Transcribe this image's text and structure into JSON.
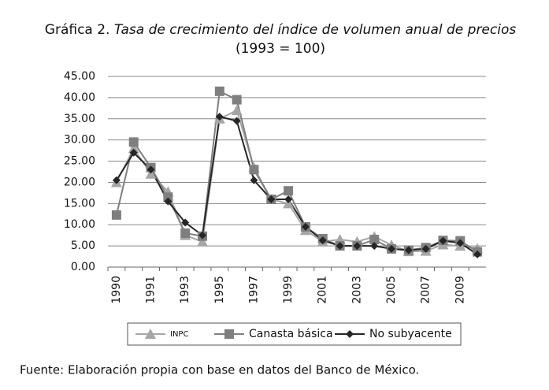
{
  "chart_data": {
    "type": "line",
    "figure_label": "Gráfica 2.",
    "title": "Tasa de crecimiento del índice de volumen anual de precios",
    "subtitle": "(1993 = 100)",
    "source": "Fuente: Elaboración propia con base en datos del Banco de México.",
    "categories": [
      "1990",
      null,
      "1991",
      null,
      "1993",
      null,
      "1995",
      null,
      "1997",
      null,
      "1999",
      null,
      "2001",
      null,
      "2003",
      null,
      "2005",
      null,
      "2007",
      null,
      "2009",
      null
    ],
    "series": [
      {
        "name": "INPC",
        "color": "#a6a6a6",
        "marker": "triangle",
        "values": [
          20.0,
          28.0,
          22.0,
          17.8,
          7.5,
          6.0,
          35.0,
          37.0,
          23.5,
          16.0,
          15.0,
          8.7,
          6.0,
          6.5,
          6.0,
          7.2,
          5.2,
          3.7,
          3.8,
          5.3,
          5.0,
          4.4
        ]
      },
      {
        "name": "Canasta básica",
        "color": "#7f7f7f",
        "marker": "square",
        "values": [
          12.3,
          29.5,
          23.5,
          16.5,
          8.0,
          7.3,
          41.5,
          39.5,
          23.0,
          16.0,
          18.0,
          9.5,
          6.7,
          5.0,
          5.0,
          6.5,
          4.3,
          4.0,
          4.6,
          6.3,
          6.2,
          3.6
        ]
      },
      {
        "name": "No subyacente",
        "color": "#262626",
        "marker": "diamond",
        "values": [
          20.5,
          27.0,
          23.0,
          15.5,
          10.5,
          7.5,
          35.5,
          34.5,
          20.5,
          16.0,
          16.0,
          9.5,
          6.3,
          5.0,
          5.0,
          5.0,
          4.3,
          4.0,
          4.3,
          6.2,
          5.7,
          3.0
        ]
      }
    ],
    "ylim": [
      0,
      45
    ],
    "yticks": [
      {
        "value": 0,
        "label": "0.00"
      },
      {
        "value": 5,
        "label": "5.00"
      },
      {
        "value": 10,
        "label": "10.00"
      },
      {
        "value": 15,
        "label": "15.00"
      },
      {
        "value": 20,
        "label": "20.00"
      },
      {
        "value": 25,
        "label": "25.00"
      },
      {
        "value": 30,
        "label": "30.00"
      },
      {
        "value": 35,
        "label": "35.00"
      },
      {
        "value": 40,
        "label": "40.00"
      },
      {
        "value": 45,
        "label": "45.00"
      }
    ],
    "grid": true,
    "legend": "bottom"
  }
}
